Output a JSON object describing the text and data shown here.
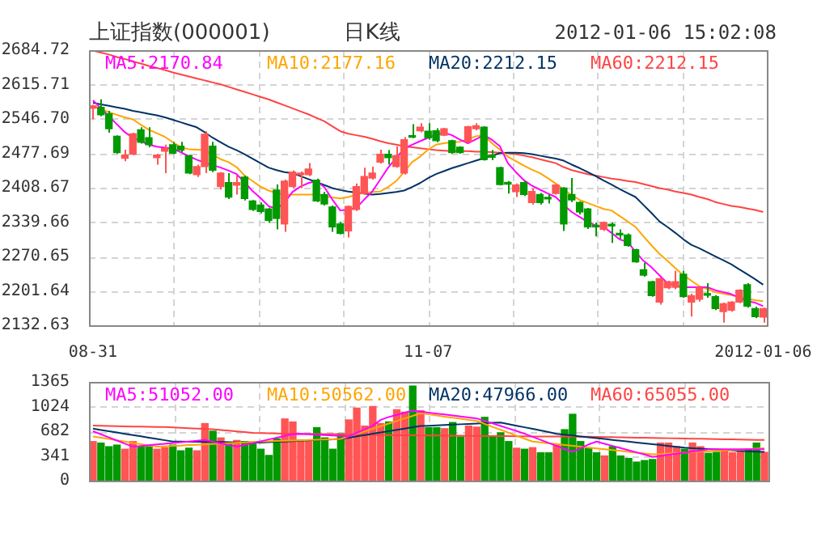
{
  "chart_data": [
    {
      "type": "candlestick",
      "title": "日K线",
      "annotations": [
        "上证指数(000001)",
        "2012-01-06 15:02:08"
      ],
      "categories": [
        "08-31",
        null,
        null,
        null,
        null,
        null,
        null,
        null,
        null,
        null,
        null,
        null,
        null,
        null,
        null,
        null,
        null,
        null,
        null,
        null,
        null,
        null,
        null,
        null,
        null,
        null,
        null,
        null,
        null,
        null,
        null,
        null,
        null,
        null,
        null,
        null,
        null,
        null,
        null,
        null,
        null,
        null,
        "11-07",
        null,
        null,
        null,
        null,
        null,
        null,
        null,
        null,
        null,
        null,
        null,
        null,
        null,
        null,
        null,
        null,
        null,
        null,
        null,
        null,
        null,
        null,
        null,
        null,
        null,
        null,
        null,
        null,
        null,
        null,
        null,
        null,
        null,
        null,
        null,
        null,
        null,
        null,
        null,
        null,
        null,
        "2012-01-06"
      ],
      "ohlc": [
        [
          2568,
          2575,
          2546,
          2573
        ],
        [
          2570,
          2586,
          2552,
          2555
        ],
        [
          2557,
          2563,
          2519,
          2527
        ],
        [
          2512,
          2514,
          2477,
          2479
        ],
        [
          2468,
          2485,
          2462,
          2474
        ],
        [
          2476,
          2519,
          2474,
          2517
        ],
        [
          2525,
          2530,
          2497,
          2500
        ],
        [
          2509,
          2530,
          2490,
          2495
        ],
        [
          2469,
          2477,
          2455,
          2474
        ],
        [
          2482,
          2495,
          2438,
          2487
        ],
        [
          2495,
          2500,
          2476,
          2478
        ],
        [
          2492,
          2501,
          2480,
          2484
        ],
        [
          2473,
          2475,
          2436,
          2438
        ],
        [
          2435,
          2455,
          2430,
          2451
        ],
        [
          2451,
          2522,
          2438,
          2516
        ],
        [
          2492,
          2501,
          2440,
          2444
        ],
        [
          2411,
          2440,
          2405,
          2438
        ],
        [
          2419,
          2438,
          2386,
          2390
        ],
        [
          2414,
          2433,
          2395,
          2419
        ],
        [
          2430,
          2433,
          2383,
          2387
        ],
        [
          2382,
          2384,
          2362,
          2365
        ],
        [
          2374,
          2379,
          2357,
          2361
        ],
        [
          2366,
          2369,
          2338,
          2343
        ],
        [
          2404,
          2415,
          2325,
          2347
        ],
        [
          2336,
          2425,
          2320,
          2422
        ],
        [
          2411,
          2443,
          2408,
          2440
        ],
        [
          2435,
          2441,
          2408,
          2438
        ],
        [
          2435,
          2458,
          2432,
          2446
        ],
        [
          2424,
          2427,
          2380,
          2382
        ],
        [
          2395,
          2400,
          2373,
          2376
        ],
        [
          2370,
          2373,
          2320,
          2330
        ],
        [
          2336,
          2340,
          2315,
          2317
        ],
        [
          2322,
          2373,
          2309,
          2371
        ],
        [
          2365,
          2417,
          2362,
          2411
        ],
        [
          2397,
          2449,
          2395,
          2431
        ],
        [
          2428,
          2451,
          2425,
          2438
        ],
        [
          2460,
          2485,
          2457,
          2476
        ],
        [
          2476,
          2484,
          2455,
          2469
        ],
        [
          2451,
          2492,
          2449,
          2473
        ],
        [
          2438,
          2510,
          2435,
          2505
        ],
        [
          2513,
          2536,
          2508,
          2510
        ],
        [
          2523,
          2538,
          2520,
          2530
        ],
        [
          2522,
          2538,
          2505,
          2509
        ],
        [
          2523,
          2528,
          2500,
          2503
        ],
        [
          2514,
          2529,
          2512,
          2527
        ],
        [
          2503,
          2505,
          2477,
          2479
        ],
        [
          2490,
          2492,
          2477,
          2479
        ],
        [
          2501,
          2533,
          2499,
          2531
        ],
        [
          2527,
          2538,
          2524,
          2533
        ],
        [
          2530,
          2532,
          2463,
          2465
        ],
        [
          2474,
          2484,
          2464,
          2470
        ],
        [
          2449,
          2451,
          2413,
          2415
        ],
        [
          2419,
          2422,
          2397,
          2416
        ],
        [
          2401,
          2417,
          2390,
          2414
        ],
        [
          2419,
          2422,
          2392,
          2395
        ],
        [
          2379,
          2408,
          2375,
          2401
        ],
        [
          2395,
          2398,
          2375,
          2379
        ],
        [
          2388,
          2395,
          2377,
          2386
        ],
        [
          2397,
          2416,
          2395,
          2414
        ],
        [
          2408,
          2410,
          2322,
          2336
        ],
        [
          2395,
          2428,
          2380,
          2384
        ],
        [
          2379,
          2381,
          2355,
          2360
        ],
        [
          2366,
          2368,
          2326,
          2330
        ],
        [
          2332,
          2339,
          2311,
          2330
        ],
        [
          2325,
          2341,
          2322,
          2339
        ],
        [
          2334,
          2339,
          2298,
          2332
        ],
        [
          2317,
          2325,
          2306,
          2314
        ],
        [
          2314,
          2317,
          2290,
          2293
        ],
        [
          2284,
          2286,
          2258,
          2260
        ],
        [
          2244,
          2258,
          2230,
          2233
        ],
        [
          2220,
          2222,
          2190,
          2192
        ],
        [
          2179,
          2228,
          2174,
          2226
        ],
        [
          2208,
          2222,
          2205,
          2220
        ],
        [
          2209,
          2242,
          2205,
          2220
        ],
        [
          2235,
          2242,
          2188,
          2190
        ],
        [
          2179,
          2196,
          2150,
          2192
        ],
        [
          2185,
          2210,
          2180,
          2208
        ],
        [
          2196,
          2217,
          2188,
          2193
        ],
        [
          2190,
          2193,
          2163,
          2166
        ],
        [
          2160,
          2178,
          2138,
          2176
        ],
        [
          2163,
          2181,
          2160,
          2179
        ],
        [
          2179,
          2205,
          2177,
          2203
        ],
        [
          2214,
          2217,
          2168,
          2171
        ],
        [
          2166,
          2170,
          2147,
          2150
        ],
        [
          2149,
          2168,
          2138,
          2166
        ]
      ],
      "colors": [
        "#ff5555",
        "#009900",
        "#009900",
        "#009900",
        "#ff5555",
        "#ff5555",
        "#009900",
        "#009900",
        "#ff5555",
        "#ff5555",
        "#009900",
        "#009900",
        "#009900",
        "#ff5555",
        "#ff5555",
        "#009900",
        "#ff5555",
        "#009900",
        "#ff5555",
        "#009900",
        "#009900",
        "#009900",
        "#009900",
        "#009900",
        "#ff5555",
        "#ff5555",
        "#ff5555",
        "#ff5555",
        "#009900",
        "#009900",
        "#009900",
        "#009900",
        "#ff5555",
        "#ff5555",
        "#ff5555",
        "#ff5555",
        "#ff5555",
        "#009900",
        "#ff5555",
        "#ff5555",
        "#009900",
        "#ff5555",
        "#009900",
        "#009900",
        "#ff5555",
        "#009900",
        "#009900",
        "#ff5555",
        "#ff5555",
        "#009900",
        "#009900",
        "#009900",
        "#009900",
        "#ff5555",
        "#009900",
        "#ff5555",
        "#009900",
        "#009900",
        "#ff5555",
        "#009900",
        "#009900",
        "#009900",
        "#009900",
        "#009900",
        "#ff5555",
        "#009900",
        "#009900",
        "#009900",
        "#009900",
        "#009900",
        "#009900",
        "#ff5555",
        "#ff5555",
        "#ff5555",
        "#009900",
        "#ff5555",
        "#ff5555",
        "#009900",
        "#009900",
        "#ff5555",
        "#ff5555",
        "#ff5555",
        "#009900",
        "#009900",
        "#ff5555"
      ],
      "series": [
        {
          "name": "MA5:2170.84",
          "type": "line",
          "color": "#ff00ff",
          "values": [
            2584,
            2568,
            2552,
            2536,
            2520,
            2509,
            2502,
            2495,
            2491,
            2489,
            2487,
            2480,
            2472,
            2465,
            2459,
            2454,
            2449,
            2443,
            2436,
            2420,
            2402,
            2388,
            2372,
            2366,
            2379,
            2400,
            2411,
            2418,
            2422,
            2410,
            2385,
            2363,
            2365,
            2368,
            2385,
            2401,
            2425,
            2449,
            2468,
            2487,
            2495,
            2502,
            2509,
            2515,
            2519,
            2514,
            2505,
            2498,
            2506,
            2514,
            2505,
            2492,
            2458,
            2440,
            2424,
            2413,
            2405,
            2397,
            2390,
            2374,
            2360,
            2350,
            2340,
            2333,
            2330,
            2318,
            2305,
            2300,
            2280,
            2262,
            2249,
            2233,
            2217,
            2212,
            2209,
            2209,
            2209,
            2209,
            2203,
            2199,
            2195,
            2188,
            2181,
            2178,
            2171
          ]
        },
        {
          "name": "MA10:2177.16",
          "type": "line",
          "color": "#ffa500",
          "values": [
            2573,
            2567,
            2560,
            2555,
            2550,
            2546,
            2535,
            2525,
            2518,
            2511,
            2500,
            2490,
            2486,
            2485,
            2484,
            2475,
            2466,
            2460,
            2450,
            2433,
            2422,
            2411,
            2403,
            2398,
            2395,
            2395,
            2395,
            2395,
            2395,
            2392,
            2389,
            2387,
            2390,
            2395,
            2398,
            2400,
            2401,
            2410,
            2422,
            2440,
            2460,
            2471,
            2485,
            2495,
            2498,
            2500,
            2501,
            2506,
            2512,
            2514,
            2498,
            2485,
            2471,
            2462,
            2453,
            2445,
            2438,
            2428,
            2417,
            2405,
            2394,
            2384,
            2378,
            2372,
            2366,
            2363,
            2352,
            2341,
            2330,
            2311,
            2293,
            2276,
            2262,
            2247,
            2233,
            2222,
            2211,
            2205,
            2199,
            2196,
            2193,
            2190,
            2186,
            2183,
            2181
          ]
        },
        {
          "name": "MA20:2212.15",
          "type": "line",
          "color": "#003366",
          "values": [
            2579,
            2576,
            2573,
            2570,
            2567,
            2563,
            2560,
            2557,
            2554,
            2550,
            2545,
            2540,
            2535,
            2530,
            2520,
            2509,
            2500,
            2491,
            2484,
            2476,
            2467,
            2458,
            2449,
            2444,
            2440,
            2438,
            2432,
            2426,
            2420,
            2414,
            2408,
            2404,
            2401,
            2399,
            2397,
            2395,
            2396,
            2398,
            2400,
            2403,
            2410,
            2418,
            2428,
            2436,
            2442,
            2448,
            2453,
            2458,
            2463,
            2468,
            2473,
            2478,
            2479,
            2479,
            2478,
            2476,
            2473,
            2470,
            2467,
            2463,
            2455,
            2448,
            2440,
            2432,
            2423,
            2415,
            2406,
            2398,
            2390,
            2374,
            2358,
            2341,
            2330,
            2318,
            2305,
            2294,
            2287,
            2279,
            2271,
            2263,
            2255,
            2245,
            2235,
            2225,
            2214
          ]
        },
        {
          "name": "MA60:2212.15",
          "type": "line",
          "color": "#ff4444",
          "values": [
            2684,
            2680,
            2676,
            2671,
            2667,
            2662,
            2658,
            2653,
            2649,
            2645,
            2640,
            2636,
            2632,
            2628,
            2624,
            2620,
            2616,
            2611,
            2606,
            2601,
            2596,
            2591,
            2586,
            2580,
            2574,
            2568,
            2562,
            2556,
            2549,
            2542,
            2532,
            2522,
            2517,
            2514,
            2511,
            2507,
            2502,
            2498,
            2495,
            2492,
            2490,
            2488,
            2486,
            2484,
            2483,
            2482,
            2482,
            2482,
            2481,
            2481,
            2480,
            2479,
            2478,
            2476,
            2473,
            2470,
            2466,
            2462,
            2458,
            2450,
            2444,
            2440,
            2436,
            2433,
            2430,
            2427,
            2425,
            2422,
            2420,
            2416,
            2412,
            2408,
            2405,
            2401,
            2398,
            2395,
            2390,
            2386,
            2380,
            2376,
            2372,
            2370,
            2367,
            2364,
            2360
          ]
        }
      ],
      "ylim": [
        2132.63,
        2684.72
      ],
      "yticks": [
        2132.63,
        2201.64,
        2270.65,
        2339.66,
        2408.67,
        2477.69,
        {
          "value": 2546.7,
          "label": "2546.70"
        },
        2615.71,
        2684.72
      ],
      "grid": true,
      "legend": "top",
      "marker": "none",
      "line_style": "solid"
    },
    {
      "type": "bar",
      "values": [
        540,
        519,
        469,
        491,
        434,
        540,
        469,
        469,
        434,
        455,
        491,
        412,
        448,
        412,
        789,
        683,
        590,
        519,
        555,
        540,
        519,
        434,
        348,
        576,
        853,
        811,
        562,
        540,
        732,
        590,
        434,
        647,
        839,
        1003,
        754,
        1024,
        789,
        811,
        981,
        946,
        1308,
        967,
        732,
        732,
        718,
        803,
        604,
        754,
        739,
        875,
        611,
        661,
        540,
        448,
        434,
        455,
        384,
        384,
        491,
        704,
        917,
        540,
        448,
        384,
        341,
        469,
        341,
        306,
        256,
        277,
        292,
        519,
        519,
        469,
        434,
        519,
        469,
        377,
        391,
        419,
        384,
        398,
        434,
        519,
        391
      ],
      "colors": [
        "#ff5555",
        "#009900",
        "#009900",
        "#009900",
        "#ff5555",
        "#ff5555",
        "#009900",
        "#009900",
        "#ff5555",
        "#ff5555",
        "#009900",
        "#009900",
        "#009900",
        "#ff5555",
        "#ff5555",
        "#009900",
        "#ff5555",
        "#009900",
        "#ff5555",
        "#009900",
        "#009900",
        "#009900",
        "#009900",
        "#009900",
        "#ff5555",
        "#ff5555",
        "#ff5555",
        "#ff5555",
        "#009900",
        "#009900",
        "#009900",
        "#009900",
        "#ff5555",
        "#ff5555",
        "#ff5555",
        "#ff5555",
        "#ff5555",
        "#009900",
        "#ff5555",
        "#ff5555",
        "#009900",
        "#ff5555",
        "#009900",
        "#009900",
        "#ff5555",
        "#009900",
        "#009900",
        "#ff5555",
        "#ff5555",
        "#009900",
        "#009900",
        "#009900",
        "#009900",
        "#ff5555",
        "#009900",
        "#ff5555",
        "#009900",
        "#009900",
        "#ff5555",
        "#009900",
        "#009900",
        "#009900",
        "#009900",
        "#009900",
        "#ff5555",
        "#009900",
        "#009900",
        "#009900",
        "#009900",
        "#009900",
        "#009900",
        "#ff5555",
        "#ff5555",
        "#ff5555",
        "#009900",
        "#ff5555",
        "#ff5555",
        "#009900",
        "#009900",
        "#ff5555",
        "#ff5555",
        "#ff5555",
        "#009900",
        "#009900",
        "#ff5555"
      ],
      "series": [
        {
          "name": "MA5:51052.00",
          "type": "line",
          "color": "#ff00ff",
          "values": [
            683,
            640,
            597,
            554,
            511,
            469,
            479,
            490,
            500,
            510,
            521,
            531,
            541,
            552,
            562,
            538,
            514,
            491,
            469,
            494,
            519,
            544,
            569,
            594,
            619,
            644,
            647,
            641,
            635,
            629,
            623,
            617,
            611,
            660,
            710,
            760,
            840,
            880,
            910,
            940,
            967,
            954,
            940,
            927,
            914,
            900,
            887,
            873,
            860,
            825,
            790,
            755,
            720,
            685,
            647,
            605,
            563,
            521,
            479,
            437,
            398,
            450,
            500,
            540,
            510,
            480,
            450,
            420,
            390,
            360,
            327,
            342,
            357,
            372,
            387,
            402,
            418,
            434,
            434,
            434,
            434,
            434,
            434,
            434,
            434
          ]
        },
        {
          "name": "MA10:50562.00",
          "type": "line",
          "color": "#ffa500",
          "values": [
            611,
            593,
            575,
            557,
            539,
            521,
            503,
            485,
            469,
            474,
            480,
            485,
            491,
            496,
            502,
            507,
            513,
            518,
            524,
            529,
            535,
            540,
            544,
            547,
            551,
            554,
            558,
            561,
            565,
            568,
            572,
            576,
            611,
            647,
            682,
            718,
            753,
            789,
            824,
            860,
            895,
            931,
            916,
            900,
            885,
            870,
            855,
            840,
            825,
            784,
            743,
            702,
            661,
            620,
            579,
            540,
            528,
            516,
            505,
            493,
            481,
            469,
            457,
            446,
            434,
            422,
            410,
            398,
            387,
            375,
            363,
            369,
            375,
            381,
            387,
            393,
            399,
            405,
            411,
            417,
            423,
            429,
            435,
            441,
            448
          ]
        },
        {
          "name": "MA20:47966.00",
          "type": "line",
          "color": "#003366",
          "values": [
            718,
            700,
            683,
            665,
            647,
            630,
            612,
            594,
            576,
            558,
            540,
            539,
            538,
            536,
            535,
            534,
            533,
            532,
            530,
            529,
            528,
            527,
            531,
            536,
            541,
            546,
            551,
            556,
            561,
            566,
            571,
            576,
            594,
            612,
            630,
            648,
            666,
            684,
            702,
            720,
            738,
            754,
            759,
            764,
            769,
            774,
            779,
            784,
            789,
            794,
            799,
            803,
            781,
            759,
            737,
            715,
            693,
            671,
            647,
            635,
            623,
            611,
            599,
            587,
            575,
            563,
            551,
            539,
            527,
            515,
            503,
            491,
            479,
            467,
            455,
            448,
            442,
            436,
            430,
            424,
            418,
            412,
            406,
            401,
            398
          ]
        },
        {
          "name": "MA60:65055.00",
          "type": "line",
          "color": "#ff4444",
          "values": [
            761,
            758,
            755,
            752,
            750,
            748,
            746,
            744,
            742,
            740,
            735,
            730,
            725,
            720,
            715,
            710,
            700,
            690,
            680,
            670,
            660,
            657,
            654,
            651,
            648,
            647,
            646,
            645,
            644,
            643,
            642,
            640,
            638,
            636,
            634,
            632,
            630,
            628,
            627,
            626,
            626,
            625,
            624,
            623,
            622,
            621,
            620,
            619,
            618,
            617,
            616,
            615,
            614,
            613,
            612,
            611,
            611,
            611,
            611,
            611,
            610,
            608,
            606,
            604,
            602,
            600,
            598,
            596,
            594,
            592,
            590,
            588,
            586,
            584,
            582,
            580,
            578,
            576,
            574,
            572,
            570,
            568,
            565,
            562,
            562
          ]
        }
      ],
      "ylim": [
        0,
        1365
      ],
      "yticks": [
        0,
        341,
        682,
        1024,
        1365
      ],
      "grid": true,
      "legend": "top",
      "marker": "none",
      "line_style": "solid",
      "tick_labels": "y"
    }
  ]
}
